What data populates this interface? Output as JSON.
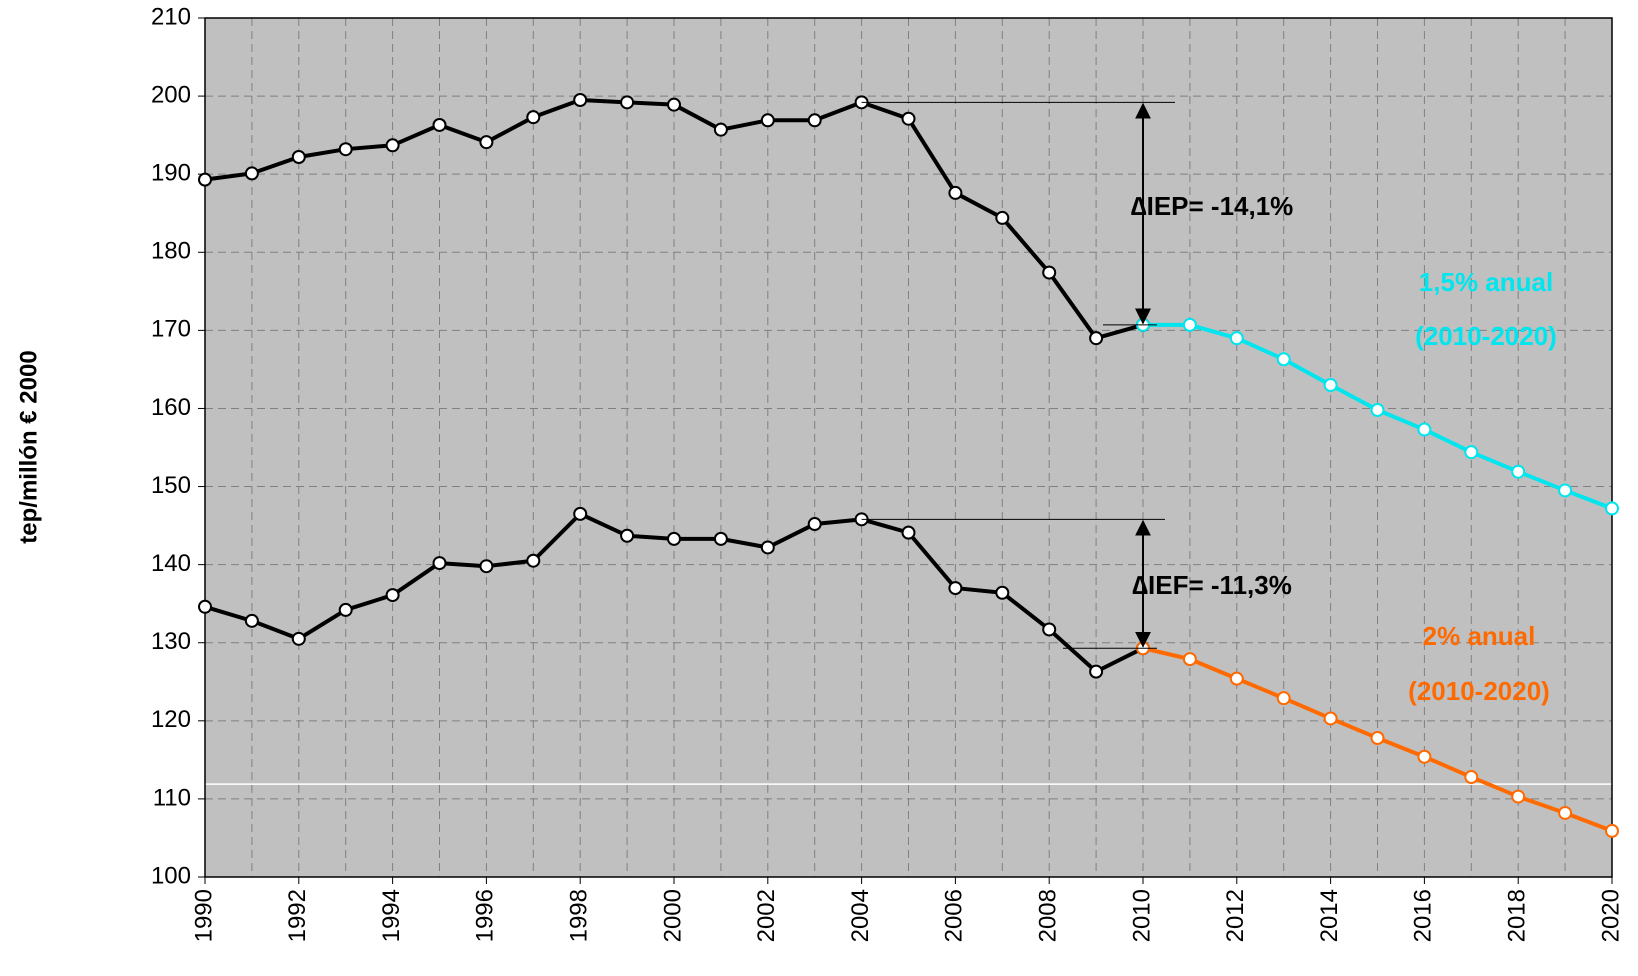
{
  "chart_data": {
    "type": "line",
    "y_label": "tep/millón € 2000",
    "x": [
      1990,
      1991,
      1992,
      1993,
      1994,
      1995,
      1996,
      1997,
      1998,
      1999,
      2000,
      2001,
      2002,
      2003,
      2004,
      2005,
      2006,
      2007,
      2008,
      2009,
      2010,
      2011,
      2012,
      2013,
      2014,
      2015,
      2016,
      2017,
      2018,
      2019,
      2020
    ],
    "xlim": [
      1990,
      2020
    ],
    "xticks": [
      1990,
      1992,
      1994,
      1996,
      1998,
      2000,
      2002,
      2004,
      2006,
      2008,
      2010,
      2012,
      2014,
      2016,
      2018,
      2020
    ],
    "ylim": [
      100,
      210
    ],
    "yticks": [
      100,
      110,
      120,
      130,
      140,
      150,
      160,
      170,
      180,
      190,
      200,
      210
    ],
    "grid": true,
    "hline": 111.9,
    "series": [
      {
        "color": "#000000",
        "values": [
          189.3,
          190.1,
          192.2,
          193.2,
          193.7,
          196.3,
          194.1,
          197.3,
          199.5,
          199.2,
          198.9,
          195.7,
          196.9,
          196.9,
          199.2,
          197.1,
          187.6,
          184.4,
          177.4,
          169.0,
          170.7,
          null,
          null,
          null,
          null,
          null,
          null,
          null,
          null,
          null,
          null
        ]
      },
      {
        "color": "#00e5ee",
        "values": [
          null,
          null,
          null,
          null,
          null,
          null,
          null,
          null,
          null,
          null,
          null,
          null,
          null,
          null,
          null,
          null,
          null,
          null,
          null,
          null,
          170.7,
          170.7,
          169.0,
          166.3,
          163.0,
          159.8,
          157.3,
          154.4,
          151.9,
          149.5,
          147.2
        ]
      },
      {
        "color": "#000000",
        "values": [
          134.6,
          132.8,
          130.5,
          134.2,
          136.1,
          140.2,
          139.8,
          140.5,
          146.5,
          143.7,
          143.3,
          143.3,
          142.2,
          145.2,
          145.8,
          144.1,
          137.0,
          136.4,
          131.7,
          126.3,
          129.3,
          null,
          null,
          null,
          null,
          null,
          null,
          null,
          null,
          null,
          null
        ]
      },
      {
        "color": "#ff6a00",
        "values": [
          null,
          null,
          null,
          null,
          null,
          null,
          null,
          null,
          null,
          null,
          null,
          null,
          null,
          null,
          null,
          null,
          null,
          null,
          null,
          null,
          129.3,
          127.9,
          125.4,
          122.9,
          120.3,
          117.8,
          115.4,
          112.8,
          110.3,
          108.2,
          105.9
        ]
      }
    ],
    "annotations": [
      {
        "text": "∆IEP= -14,1%",
        "color": "#000000"
      },
      {
        "text": "1,5% anual",
        "color": "#00e5ee"
      },
      {
        "text": "(2010-2020)",
        "color": "#00e5ee"
      },
      {
        "text": "∆IEF= -11,3%",
        "color": "#000000"
      },
      {
        "text": "2% anual",
        "color": "#ff6a00"
      },
      {
        "text": "(2010-2020)",
        "color": "#ff6a00"
      }
    ]
  }
}
